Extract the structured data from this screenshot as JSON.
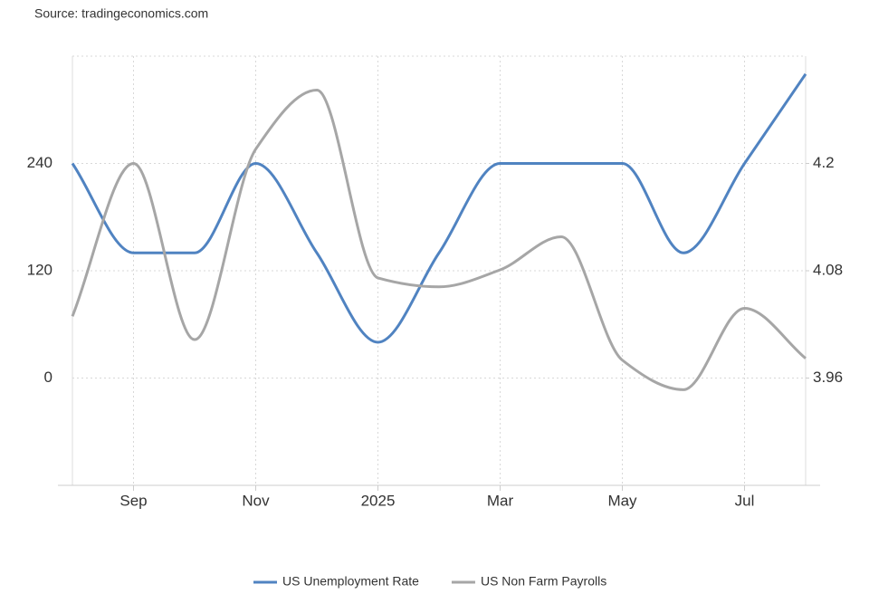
{
  "chart_data": {
    "type": "line",
    "source": "Source: tradingeconomics.com",
    "categories": [
      null,
      "Sep",
      null,
      "Nov",
      null,
      "2025",
      null,
      "Mar",
      null,
      "May",
      null,
      "Jul",
      null
    ],
    "series": [
      {
        "name": "US Unemployment Rate",
        "color": "#5083c1",
        "axis": "y2",
        "values": [
          4.2,
          4.1,
          4.1,
          4.2,
          4.1,
          4.0,
          4.1,
          4.2,
          4.2,
          4.2,
          4.1,
          4.2,
          4.3
        ]
      },
      {
        "name": "US Non Farm Payrolls",
        "color": "#a6a6a6",
        "values": [
          69,
          240,
          43,
          256,
          322,
          112,
          102,
          121,
          158,
          20,
          -13,
          78,
          22
        ]
      }
    ],
    "ylim": [
      -120,
      360
    ],
    "yticks": [
      0,
      120,
      240
    ],
    "y2lim": [
      3.84,
      4.32
    ],
    "y2ticks": [
      3.96,
      4.08,
      4.2
    ],
    "grid": true,
    "legend": "bottom"
  }
}
